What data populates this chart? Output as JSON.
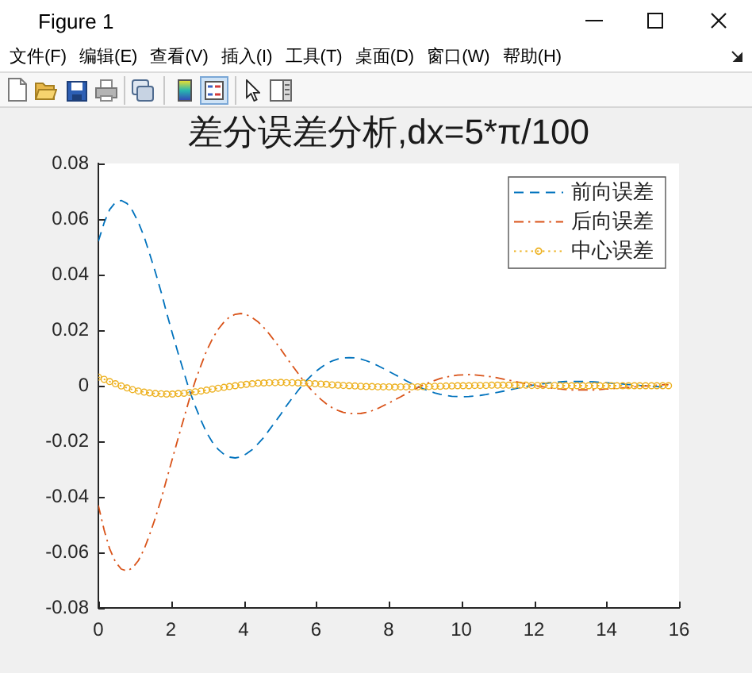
{
  "chart_data": {
    "type": "line",
    "title": "差分误差分析,dx=5*π/100",
    "x": [
      0,
      0.16,
      0.31,
      0.47,
      0.63,
      0.79,
      0.94,
      1.1,
      1.26,
      1.41,
      1.57,
      1.73,
      1.88,
      2.04,
      2.2,
      2.36,
      2.51,
      2.67,
      2.83,
      2.98,
      3.14,
      3.3,
      3.46,
      3.61,
      3.77,
      3.93,
      4.08,
      4.24,
      4.4,
      4.56,
      4.71,
      4.87,
      5.03,
      5.18,
      5.34,
      5.5,
      5.65,
      5.81,
      5.97,
      6.13,
      6.28,
      6.44,
      6.6,
      6.75,
      6.91,
      7.07,
      7.23,
      7.38,
      7.54,
      7.7,
      7.85,
      8.01,
      8.17,
      8.33,
      8.48,
      8.64,
      8.8,
      8.95,
      9.11,
      9.27,
      9.42,
      9.58,
      9.74,
      9.9,
      10.05,
      10.21,
      10.37,
      10.52,
      10.68,
      10.84,
      11,
      11.15,
      11.31,
      11.47,
      11.62,
      11.78,
      11.94,
      12.1,
      12.25,
      12.41,
      12.57,
      12.72,
      12.88,
      13.04,
      13.19,
      13.35,
      13.51,
      13.67,
      13.82,
      13.98,
      14.14,
      14.29,
      14.45,
      14.61,
      14.77,
      14.92,
      15.08,
      15.24,
      15.39,
      15.55,
      15.71
    ],
    "xlim": [
      0,
      16
    ],
    "xticks": [
      0,
      2,
      4,
      6,
      8,
      10,
      12,
      14,
      16
    ],
    "ylim": [
      -0.08,
      0.08
    ],
    "yticks": [
      -0.08,
      -0.06,
      -0.04,
      -0.02,
      0,
      0.02,
      0.04,
      0.06,
      0.08
    ],
    "legend": "top right",
    "series": [
      {
        "name": "前向误差",
        "color": "#0072bd",
        "line_style": "dashed",
        "values": [
          0.052,
          0.0587,
          0.0634,
          0.066,
          0.0667,
          0.0656,
          0.063,
          0.0589,
          0.0537,
          0.0476,
          0.0409,
          0.0337,
          0.0263,
          0.0188,
          0.0116,
          0.0047,
          -0.0017,
          -0.0074,
          -0.0125,
          -0.0168,
          -0.0203,
          -0.0229,
          -0.0247,
          -0.0257,
          -0.026,
          -0.0256,
          -0.0245,
          -0.023,
          -0.0209,
          -0.0186,
          -0.0159,
          -0.0131,
          -0.0102,
          -0.0073,
          -0.0045,
          -0.0018,
          0.0007,
          0.0029,
          0.0049,
          0.0065,
          0.0079,
          0.0089,
          0.0096,
          0.01,
          0.0101,
          0.01,
          0.0096,
          0.009,
          0.0082,
          0.0072,
          0.0062,
          0.0051,
          0.004,
          0.0029,
          0.0018,
          0.0007,
          -0.0003,
          -0.0011,
          -0.0019,
          -0.0026,
          -0.0031,
          -0.0035,
          -0.0038,
          -0.0039,
          -0.004,
          -0.0039,
          -0.0037,
          -0.0035,
          -0.0032,
          -0.0028,
          -0.0024,
          -0.002,
          -0.0016,
          -0.0011,
          -0.0007,
          -0.0003,
          0.0001,
          0.0004,
          0.0007,
          0.001,
          0.0012,
          0.0014,
          0.0015,
          0.0015,
          0.0015,
          0.0015,
          0.0015,
          0.0014,
          0.0012,
          0.0011,
          0.0009,
          0.0008,
          0.0006,
          0.0004,
          0.0003,
          0.0001,
          0,
          -0.0002,
          -0.0003,
          -0.0004,
          -0.0005
        ]
      },
      {
        "name": "后向误差",
        "color": "#d95319",
        "line_style": "dashdot",
        "values": [
          -0.0431,
          -0.052,
          -0.0587,
          -0.0634,
          -0.066,
          -0.0667,
          -0.0656,
          -0.063,
          -0.0589,
          -0.0537,
          -0.0476,
          -0.0409,
          -0.0337,
          -0.0263,
          -0.0188,
          -0.0116,
          -0.0047,
          0.0017,
          0.0074,
          0.0125,
          0.0168,
          0.0203,
          0.0229,
          0.0247,
          0.0257,
          0.026,
          0.0256,
          0.0245,
          0.023,
          0.0209,
          0.0186,
          0.0159,
          0.0131,
          0.0102,
          0.0073,
          0.0045,
          0.0018,
          -0.0007,
          -0.0029,
          -0.0049,
          -0.0065,
          -0.0079,
          -0.0089,
          -0.0096,
          -0.01,
          -0.0101,
          -0.01,
          -0.0096,
          -0.009,
          -0.0082,
          -0.0072,
          -0.0062,
          -0.0051,
          -0.004,
          -0.0029,
          -0.0018,
          -0.0007,
          0.0003,
          0.0011,
          0.0019,
          0.0026,
          0.0031,
          0.0035,
          0.0038,
          0.0039,
          0.004,
          0.0039,
          0.0037,
          0.0035,
          0.0032,
          0.0028,
          0.0024,
          0.002,
          0.0016,
          0.0011,
          0.0007,
          0.0003,
          -0.0001,
          -0.0004,
          -0.0007,
          -0.001,
          -0.0012,
          -0.0014,
          -0.0015,
          -0.0015,
          -0.0015,
          -0.0015,
          -0.0015,
          -0.0014,
          -0.0012,
          -0.0011,
          -0.0009,
          -0.0008,
          -0.0006,
          -0.0004,
          -0.0003,
          -0.0001,
          0,
          0.0002,
          0.0003,
          0.0004
        ]
      },
      {
        "name": "中心误差",
        "color": "#edb120",
        "line_style": "dotted",
        "marker": "circle",
        "values": [
          0.0031,
          0.0023,
          0.0015,
          0.0007,
          -0.0001,
          -0.0008,
          -0.0014,
          -0.0019,
          -0.0023,
          -0.0026,
          -0.0028,
          -0.0029,
          -0.003,
          -0.003,
          -0.0028,
          -0.0027,
          -0.0024,
          -0.0022,
          -0.0019,
          -0.0016,
          -0.0012,
          -0.0009,
          -0.0006,
          -0.0003,
          0,
          0.0003,
          0.0005,
          0.0007,
          0.0009,
          0.001,
          0.0011,
          0.0011,
          0.0012,
          0.0011,
          0.0011,
          0.001,
          0.001,
          0.0008,
          0.0007,
          0.0006,
          0.0005,
          0.0003,
          0.0002,
          0.0001,
          0,
          -0.0001,
          -0.0002,
          -0.0003,
          -0.0003,
          -0.0004,
          -0.0004,
          -0.0004,
          -0.0005,
          -0.0004,
          -0.0004,
          -0.0004,
          -0.0004,
          -0.0003,
          -0.0003,
          -0.0002,
          -0.0002,
          -0.0001,
          -0.0001,
          0,
          0,
          0,
          0.0001,
          0.0001,
          0.0001,
          0.0002,
          0.0002,
          0.0002,
          0.0002,
          0.0002,
          0.0002,
          0.0002,
          0.0001,
          0.0001,
          0.0001,
          0.0001,
          0.0001,
          0,
          0,
          0,
          0,
          0,
          0,
          0,
          0,
          0,
          0,
          0,
          0,
          0,
          0,
          0,
          0,
          0,
          0,
          0,
          0
        ]
      }
    ],
    "annotations": [
      "Figure 1",
      "文件(F)",
      "编辑(E)",
      "查看(V)",
      "插入(I)",
      "工具(T)",
      "桌面(D)",
      "窗口(W)",
      "帮助(H)"
    ]
  }
}
